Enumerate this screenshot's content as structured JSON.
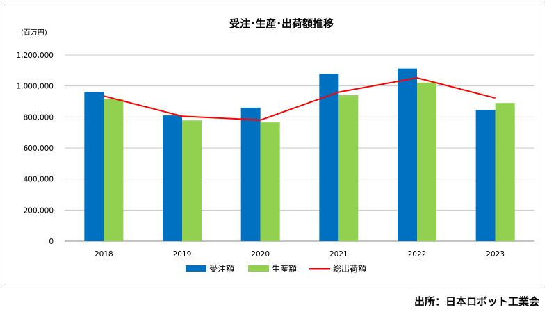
{
  "source_note": "出所：日本ロボット工業会",
  "chart_data": {
    "type": "bar",
    "title": "受注･生産･出荷額推移",
    "unit_label": "(百万円)",
    "categories": [
      "2018",
      "2019",
      "2020",
      "2021",
      "2022",
      "2023"
    ],
    "series": [
      {
        "name": "受注額",
        "kind": "bar",
        "color": "#0070C0",
        "values": [
          962000,
          810000,
          860000,
          1078000,
          1112000,
          845000
        ]
      },
      {
        "name": "生産額",
        "kind": "bar",
        "color": "#92D050",
        "values": [
          915000,
          778000,
          765000,
          940000,
          1022000,
          890000
        ]
      },
      {
        "name": "総出荷額",
        "kind": "line",
        "color": "#FF0000",
        "values": [
          935000,
          805000,
          780000,
          960000,
          1052000,
          922000
        ]
      }
    ],
    "ylim": [
      0,
      1200000
    ],
    "yticks": [
      "0",
      "200,000",
      "400,000",
      "600,000",
      "800,000",
      "1,000,000",
      "1,200,000"
    ],
    "grid": true,
    "legend_position": "bottom"
  }
}
